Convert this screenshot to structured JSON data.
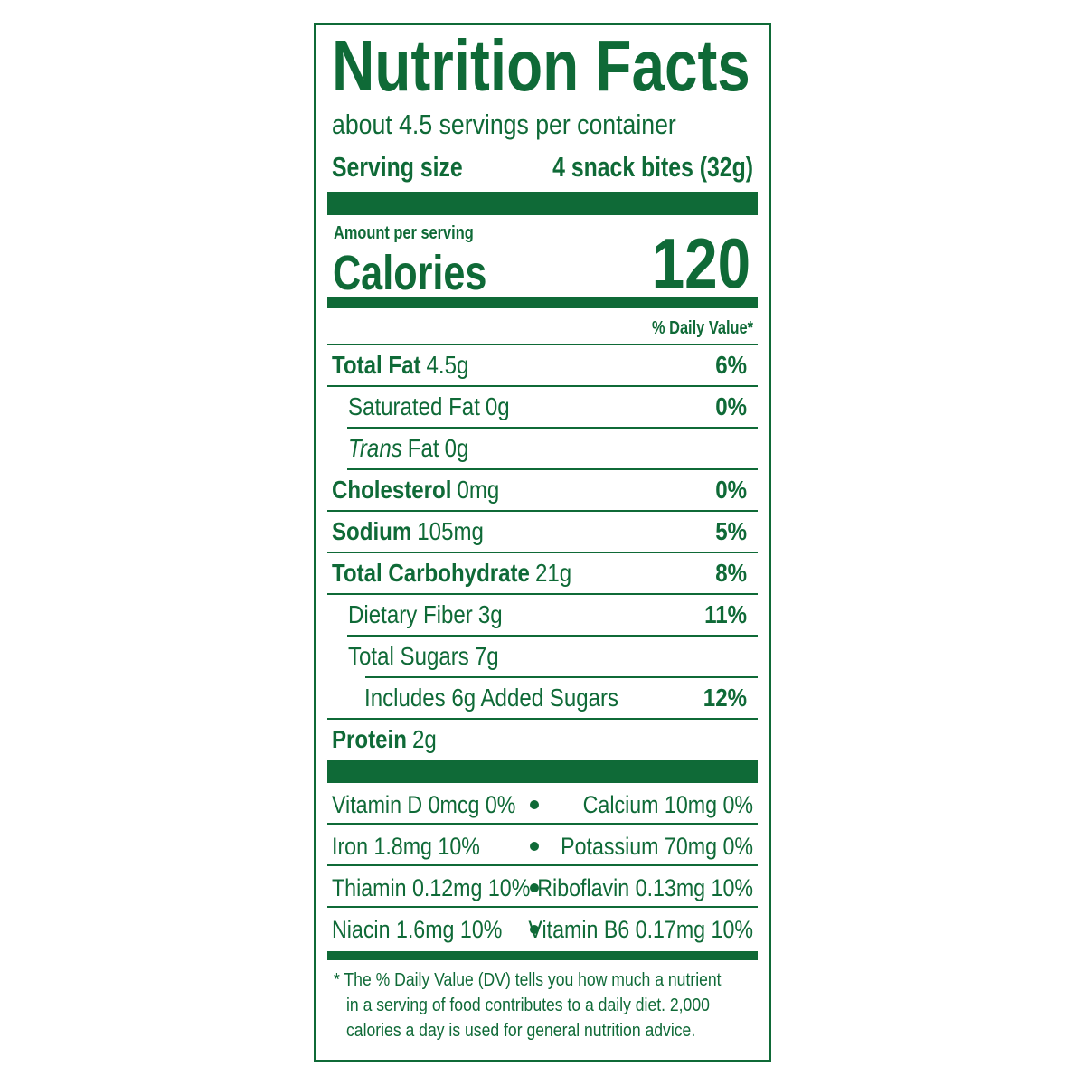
{
  "title": "Nutrition Facts",
  "servings": "about 4.5 servings per container",
  "serving_size": {
    "label": "Serving size",
    "value": "4 snack bites (32g)"
  },
  "amount_per_serving": "Amount per serving",
  "calories": {
    "label": "Calories",
    "value": "120"
  },
  "daily_value_header": "% Daily Value*",
  "nutrients": [
    {
      "name": "Total Fat",
      "amount": "4.5g",
      "dv": "6%"
    },
    {
      "name": "Saturated Fat",
      "amount": "0g",
      "dv": "0%"
    },
    {
      "name_italic": "Trans",
      "name": "Fat",
      "amount": "0g"
    },
    {
      "name": "Cholesterol",
      "amount": "0mg",
      "dv": "0%"
    },
    {
      "name": "Sodium",
      "amount": "105mg",
      "dv": "5%"
    },
    {
      "name": "Total Carbohydrate",
      "amount": "21g",
      "dv": "8%"
    },
    {
      "name": "Dietary Fiber",
      "amount": "3g",
      "dv": "11%"
    },
    {
      "name": "Total Sugars",
      "amount": "7g"
    },
    {
      "name": "Includes 6g Added Sugars",
      "dv": "12%"
    },
    {
      "name": "Protein",
      "amount": "2g"
    }
  ],
  "vitamins": [
    [
      "Vitamin D 0mcg 0%",
      "Calcium 10mg 0%"
    ],
    [
      "Iron 1.8mg 10%",
      "Potassium 70mg 0%"
    ],
    [
      "Thiamin 0.12mg 10%",
      "Riboflavin 0.13mg 10%"
    ],
    [
      "Niacin 1.6mg 10%",
      "Vitamin B6 0.17mg 10%"
    ]
  ],
  "footnote": [
    "* The % Daily Value (DV) tells you how much a nutrient",
    "in a serving of food contributes to a daily diet. 2,000",
    "calories a day is used for general nutrition advice."
  ]
}
